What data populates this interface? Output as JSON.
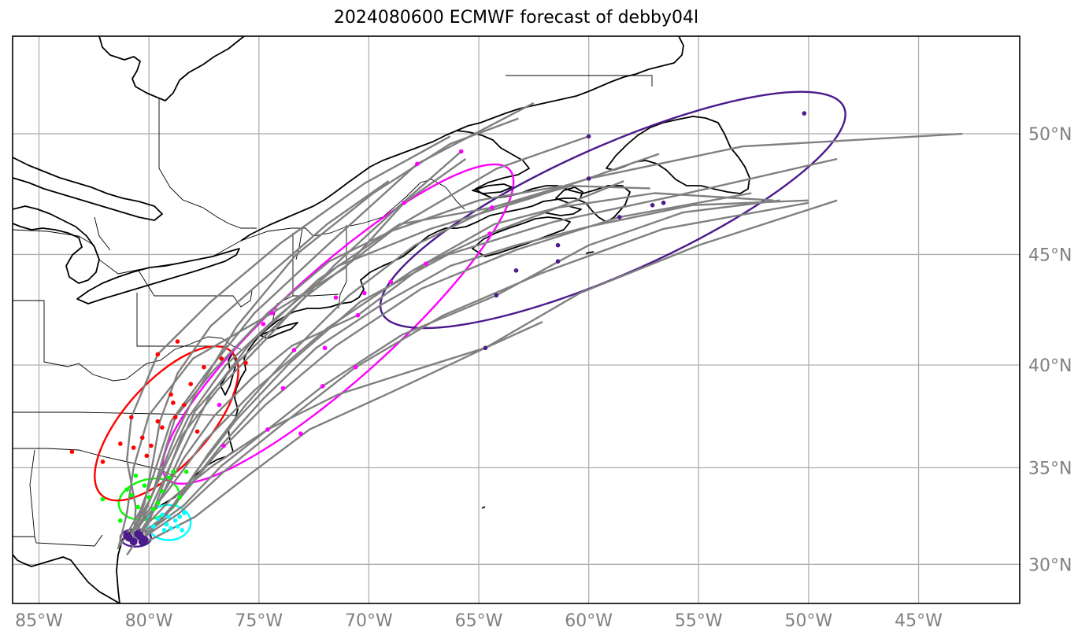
{
  "title": "2024080600 ECMWF forecast of debby04l",
  "axes": {
    "lon_ticks": [
      {
        "value": -85,
        "label": "85°W"
      },
      {
        "value": -80,
        "label": "80°W"
      },
      {
        "value": -75,
        "label": "75°W"
      },
      {
        "value": -70,
        "label": "70°W"
      },
      {
        "value": -65,
        "label": "65°W"
      },
      {
        "value": -60,
        "label": "60°W"
      },
      {
        "value": -55,
        "label": "55°W"
      },
      {
        "value": -50,
        "label": "50°W"
      },
      {
        "value": -45,
        "label": "45°W"
      }
    ],
    "lat_ticks": [
      {
        "value": 50,
        "label": "50°N"
      },
      {
        "value": 45,
        "label": "45°N"
      },
      {
        "value": 40,
        "label": "40°N"
      },
      {
        "value": 35,
        "label": "35°N"
      },
      {
        "value": 30,
        "label": "30°N"
      }
    ],
    "lon_range": [
      -86.2,
      -40.4
    ],
    "lat_range": [
      27.9,
      53.7
    ],
    "grid": true
  },
  "colors": {
    "track": "#808080",
    "coast": "#000000",
    "grid": "#b0b0b0",
    "day1": "#4b1a8c",
    "day2": "#00ffff",
    "day3": "#00ff00",
    "day4": "#ff0000",
    "day5": "#ff00ff",
    "day6": "#4b1a8c"
  },
  "chart_data": {
    "type": "scatter",
    "ellipses": [
      {
        "color": "#4b1a8c",
        "center": [
          -80.6,
          31.4
        ],
        "rx_deg": 0.7,
        "ry_deg": 0.4,
        "angle": 0
      },
      {
        "color": "#00ffff",
        "center": [
          -79.1,
          32.2
        ],
        "rx_deg": 1.0,
        "ry_deg": 0.8,
        "angle": 0
      },
      {
        "color": "#00ff00",
        "center": [
          -80.0,
          33.4
        ],
        "rx_deg": 1.4,
        "ry_deg": 0.9,
        "angle": -15
      },
      {
        "color": "#ff0000",
        "center": [
          -79.2,
          37.2
        ],
        "rx_deg": 4.4,
        "ry_deg": 1.9,
        "angle": -48
      },
      {
        "color": "#ff00ff",
        "center": [
          -71.4,
          41.9
        ],
        "rx_deg": 10.5,
        "ry_deg": 2.5,
        "angle": -42
      },
      {
        "color": "#4b1a8c",
        "center": [
          -58.9,
          46.9
        ],
        "rx_deg": 11.5,
        "ry_deg": 2.9,
        "angle": -24
      }
    ],
    "points": {
      "day1": [
        [
          -80.9,
          31.4
        ],
        [
          -80.5,
          31.6
        ],
        [
          -80.2,
          31.3
        ],
        [
          -80.7,
          31.2
        ],
        [
          -80.4,
          31.5
        ],
        [
          -81.0,
          31.5
        ],
        [
          -80.3,
          31.2
        ]
      ],
      "day2": [
        [
          -79.6,
          32.4
        ],
        [
          -79.2,
          32.1
        ],
        [
          -78.8,
          32.3
        ],
        [
          -79.0,
          31.9
        ],
        [
          -78.6,
          32.5
        ],
        [
          -79.4,
          32.6
        ],
        [
          -78.4,
          32.7
        ],
        [
          -79.8,
          32.0
        ],
        [
          -78.5,
          31.8
        ],
        [
          -79.1,
          32.5
        ],
        [
          -79.3,
          31.8
        ],
        [
          -78.7,
          32.0
        ]
      ],
      "day3": [
        [
          -80.5,
          33.0
        ],
        [
          -80.0,
          33.5
        ],
        [
          -79.6,
          33.2
        ],
        [
          -80.8,
          33.6
        ],
        [
          -79.4,
          33.8
        ],
        [
          -80.2,
          34.1
        ],
        [
          -79.1,
          34.5
        ],
        [
          -78.9,
          34.8
        ],
        [
          -81.0,
          33.9
        ],
        [
          -79.8,
          32.9
        ],
        [
          -78.6,
          33.5
        ],
        [
          -82.1,
          33.4
        ],
        [
          -81.3,
          32.3
        ],
        [
          -80.6,
          34.6
        ],
        [
          -78.3,
          34.8
        ]
      ],
      "day4": [
        [
          -80.3,
          36.5
        ],
        [
          -79.9,
          36.1
        ],
        [
          -79.4,
          37.0
        ],
        [
          -78.8,
          37.5
        ],
        [
          -78.4,
          38.1
        ],
        [
          -79.0,
          38.6
        ],
        [
          -78.1,
          39.1
        ],
        [
          -77.5,
          39.9
        ],
        [
          -79.6,
          40.5
        ],
        [
          -78.7,
          41.1
        ],
        [
          -80.8,
          37.5
        ],
        [
          -81.3,
          36.2
        ],
        [
          -83.5,
          35.8
        ],
        [
          -82.1,
          35.3
        ],
        [
          -80.1,
          35.6
        ],
        [
          -77.8,
          36.8
        ],
        [
          -79.6,
          37.3
        ],
        [
          -78.9,
          38.2
        ],
        [
          -76.7,
          40.3
        ],
        [
          -75.6,
          40.1
        ],
        [
          -80.7,
          36.0
        ]
      ],
      "day5": [
        [
          -74.6,
          36.9
        ],
        [
          -73.1,
          36.7
        ],
        [
          -73.9,
          38.9
        ],
        [
          -72.1,
          39.0
        ],
        [
          -70.6,
          39.9
        ],
        [
          -73.4,
          40.7
        ],
        [
          -74.8,
          41.9
        ],
        [
          -72.0,
          40.8
        ],
        [
          -70.5,
          42.3
        ],
        [
          -71.5,
          43.1
        ],
        [
          -70.2,
          43.3
        ],
        [
          -69.0,
          43.8
        ],
        [
          -67.4,
          44.6
        ],
        [
          -65.8,
          49.3
        ],
        [
          -67.8,
          48.8
        ],
        [
          -68.4,
          47.2
        ],
        [
          -64.5,
          45.9
        ],
        [
          -64.4,
          47.0
        ],
        [
          -76.6,
          36.1
        ],
        [
          -76.8,
          38.1
        ],
        [
          -74.4,
          42.4
        ]
      ],
      "day6": [
        [
          -64.7,
          40.8
        ],
        [
          -64.2,
          43.2
        ],
        [
          -63.3,
          44.3
        ],
        [
          -61.4,
          44.7
        ],
        [
          -61.4,
          45.4
        ],
        [
          -58.6,
          46.6
        ],
        [
          -57.1,
          47.1
        ],
        [
          -56.6,
          47.2
        ],
        [
          -60.0,
          48.2
        ],
        [
          -60.0,
          49.9
        ],
        [
          -50.2,
          50.8
        ]
      ]
    },
    "tracks": [
      [
        [
          -81.0,
          30.5
        ],
        [
          -80.0,
          32.2
        ],
        [
          -79.4,
          34.0
        ],
        [
          -78.5,
          36.6
        ],
        [
          -76.9,
          38.8
        ],
        [
          -74.4,
          41.5
        ],
        [
          -71.6,
          44.5
        ],
        [
          -68.7,
          47.0
        ],
        [
          -65.8,
          49.3
        ]
      ],
      [
        [
          -81.3,
          31.0
        ],
        [
          -80.4,
          32.8
        ],
        [
          -79.8,
          34.6
        ],
        [
          -79.0,
          37.3
        ],
        [
          -77.4,
          39.6
        ],
        [
          -75.2,
          42.4
        ],
        [
          -72.0,
          45.3
        ],
        [
          -67.8,
          48.8
        ],
        [
          -62.5,
          51.2
        ]
      ],
      [
        [
          -80.8,
          31.6
        ],
        [
          -79.9,
          33.0
        ],
        [
          -79.0,
          35.2
        ],
        [
          -77.9,
          37.8
        ],
        [
          -75.9,
          40.2
        ],
        [
          -72.8,
          43.2
        ],
        [
          -68.7,
          46.2
        ],
        [
          -64.2,
          48.6
        ],
        [
          -60.0,
          49.9
        ]
      ],
      [
        [
          -80.6,
          31.8
        ],
        [
          -79.1,
          33.9
        ],
        [
          -77.5,
          36.3
        ],
        [
          -75.2,
          38.8
        ],
        [
          -71.9,
          41.7
        ],
        [
          -68.0,
          44.3
        ],
        [
          -64.3,
          46.3
        ],
        [
          -61.4,
          47.0
        ],
        [
          -57.0,
          47.6
        ],
        [
          -51.6,
          47.3
        ]
      ],
      [
        [
          -80.2,
          31.5
        ],
        [
          -78.7,
          33.3
        ],
        [
          -77.0,
          35.6
        ],
        [
          -74.7,
          38.1
        ],
        [
          -71.5,
          40.9
        ],
        [
          -67.6,
          43.5
        ],
        [
          -63.3,
          45.2
        ],
        [
          -58.6,
          46.6
        ],
        [
          -52.6,
          47.6
        ]
      ],
      [
        [
          -80.4,
          31.3
        ],
        [
          -78.6,
          32.7
        ],
        [
          -76.6,
          34.8
        ],
        [
          -74.0,
          37.1
        ],
        [
          -70.6,
          39.9
        ],
        [
          -66.6,
          42.3
        ],
        [
          -62.1,
          44.2
        ],
        [
          -56.6,
          46.1
        ],
        [
          -50.0,
          47.2
        ]
      ],
      [
        [
          -80.1,
          31.2
        ],
        [
          -77.9,
          32.5
        ],
        [
          -75.5,
          34.6
        ],
        [
          -72.7,
          36.9
        ],
        [
          -69.0,
          38.7
        ],
        [
          -64.7,
          40.8
        ],
        [
          -60.4,
          43.3
        ],
        [
          -55.0,
          45.4
        ],
        [
          -48.7,
          47.3
        ]
      ],
      [
        [
          -80.9,
          31.5
        ],
        [
          -79.9,
          33.5
        ],
        [
          -78.8,
          36.6
        ],
        [
          -77.9,
          38.6
        ],
        [
          -76.0,
          41.8
        ],
        [
          -73.3,
          45.0
        ],
        [
          -69.8,
          47.6
        ],
        [
          -66.3,
          49.6
        ],
        [
          -63.2,
          50.6
        ]
      ],
      [
        [
          -81.4,
          30.8
        ],
        [
          -81.0,
          32.7
        ],
        [
          -80.7,
          35.0
        ],
        [
          -80.0,
          37.6
        ],
        [
          -78.0,
          40.3
        ],
        [
          -74.4,
          42.4
        ],
        [
          -71.1,
          44.4
        ],
        [
          -68.4,
          47.2
        ],
        [
          -65.6,
          49.0
        ]
      ],
      [
        [
          -80.6,
          31.4
        ],
        [
          -79.2,
          32.6
        ],
        [
          -77.8,
          34.9
        ],
        [
          -76.0,
          37.4
        ],
        [
          -73.6,
          40.1
        ],
        [
          -70.4,
          42.9
        ],
        [
          -66.4,
          45.0
        ],
        [
          -61.6,
          46.4
        ],
        [
          -56.0,
          47.5
        ],
        [
          -48.7,
          49.0
        ]
      ],
      [
        [
          -80.7,
          31.2
        ],
        [
          -79.6,
          33.1
        ],
        [
          -78.5,
          35.8
        ],
        [
          -77.2,
          38.6
        ],
        [
          -75.4,
          41.0
        ],
        [
          -72.3,
          43.9
        ],
        [
          -68.6,
          46.3
        ],
        [
          -64.4,
          47.0
        ],
        [
          -60.0,
          48.2
        ],
        [
          -53.0,
          49.5
        ],
        [
          -43.0,
          50.0
        ]
      ],
      [
        [
          -80.2,
          31.6
        ],
        [
          -78.4,
          33.1
        ],
        [
          -76.7,
          35.1
        ],
        [
          -74.6,
          36.9
        ],
        [
          -72.1,
          39.0
        ],
        [
          -68.5,
          41.4
        ],
        [
          -64.2,
          43.2
        ],
        [
          -60.0,
          45.4
        ],
        [
          -55.7,
          46.8
        ],
        [
          -51.3,
          47.3
        ]
      ],
      [
        [
          -81.0,
          31.3
        ],
        [
          -80.1,
          33.0
        ],
        [
          -79.3,
          35.0
        ],
        [
          -78.2,
          37.5
        ],
        [
          -76.5,
          40.0
        ],
        [
          -74.2,
          42.2
        ],
        [
          -71.4,
          44.5
        ],
        [
          -67.2,
          46.1
        ],
        [
          -62.6,
          47.4
        ],
        [
          -56.8,
          49.2
        ]
      ],
      [
        [
          -80.3,
          31.8
        ],
        [
          -79.4,
          33.6
        ],
        [
          -78.4,
          35.5
        ],
        [
          -77.0,
          37.6
        ],
        [
          -75.3,
          39.4
        ],
        [
          -73.5,
          40.9
        ],
        [
          -70.5,
          42.3
        ],
        [
          -67.4,
          44.6
        ],
        [
          -64.5,
          45.9
        ],
        [
          -61.4,
          47.0
        ],
        [
          -58.4,
          48.1
        ]
      ],
      [
        [
          -80.5,
          31.6
        ],
        [
          -79.0,
          33.4
        ],
        [
          -77.1,
          35.1
        ],
        [
          -74.6,
          36.9
        ],
        [
          -71.4,
          38.6
        ],
        [
          -67.5,
          39.9
        ],
        [
          -64.7,
          40.8
        ],
        [
          -62.1,
          42.0
        ]
      ],
      [
        [
          -80.8,
          31.5
        ],
        [
          -80.2,
          33.2
        ],
        [
          -79.8,
          35.4
        ],
        [
          -79.5,
          37.3
        ],
        [
          -78.7,
          39.6
        ],
        [
          -77.2,
          41.8
        ],
        [
          -74.8,
          43.9
        ],
        [
          -71.9,
          46.3
        ],
        [
          -69.1,
          48.1
        ]
      ],
      [
        [
          -80.6,
          31.5
        ],
        [
          -79.8,
          33.8
        ],
        [
          -79.2,
          36.1
        ],
        [
          -78.8,
          37.5
        ],
        [
          -77.1,
          39.7
        ],
        [
          -74.6,
          42.4
        ],
        [
          -71.8,
          44.7
        ],
        [
          -69.0,
          46.0
        ],
        [
          -65.0,
          47.3
        ],
        [
          -61.2,
          47.9
        ]
      ],
      [
        [
          -80.0,
          31.7
        ],
        [
          -78.5,
          33.6
        ],
        [
          -76.8,
          36.0
        ],
        [
          -74.8,
          38.4
        ],
        [
          -72.4,
          40.8
        ],
        [
          -69.4,
          42.8
        ],
        [
          -66.3,
          44.5
        ],
        [
          -63.3,
          45.4
        ],
        [
          -60.0,
          46.2
        ],
        [
          -55.3,
          47.1
        ],
        [
          -50.0,
          47.3
        ]
      ],
      [
        [
          -80.7,
          31.1
        ],
        [
          -80.6,
          33.0
        ],
        [
          -81.0,
          35.4
        ],
        [
          -80.8,
          37.5
        ],
        [
          -79.6,
          40.5
        ],
        [
          -77.2,
          42.9
        ],
        [
          -74.0,
          45.5
        ],
        [
          -70.2,
          48.0
        ],
        [
          -66.3,
          49.9
        ]
      ],
      [
        [
          -80.2,
          31.4
        ],
        [
          -78.9,
          33.0
        ],
        [
          -77.3,
          35.7
        ],
        [
          -75.6,
          38.1
        ],
        [
          -73.4,
          40.7
        ],
        [
          -70.9,
          43.2
        ],
        [
          -67.9,
          45.4
        ],
        [
          -64.4,
          47.0
        ],
        [
          -60.8,
          47.9
        ],
        [
          -57.2,
          47.8
        ]
      ]
    ]
  }
}
